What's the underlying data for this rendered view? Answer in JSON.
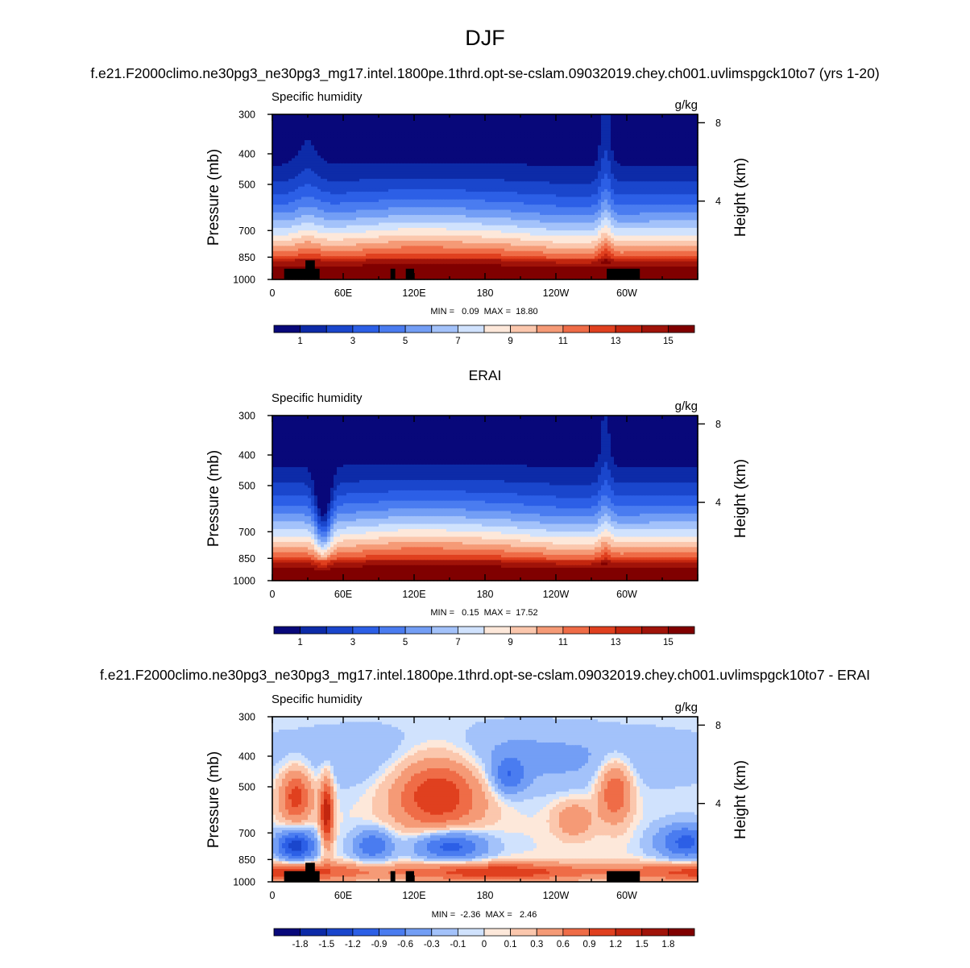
{
  "page_title": "DJF",
  "unit_label": "g/kg",
  "y_left_label": "Pressure (mb)",
  "y_right_label": "Height (km)",
  "pressure_ticks": [
    "300",
    "400",
    "500",
    "700",
    "850",
    "1000"
  ],
  "height_ticks": [
    "8",
    "4"
  ],
  "lon_ticks": [
    "0",
    "60E",
    "120E",
    "180",
    "120W",
    "60W"
  ],
  "colors": {
    "abs_levels": [
      "#08087a",
      "#0d2ba8",
      "#1a46cc",
      "#2c5fe6",
      "#4a7cf0",
      "#739ef5",
      "#a3c2fa",
      "#d0e2fd",
      "#fde8da",
      "#fbc7ad",
      "#f59a76",
      "#ef6c47",
      "#e0401f",
      "#c3260f",
      "#a01309",
      "#800000"
    ],
    "diff_levels": [
      "#08087a",
      "#0d2ba8",
      "#1a46cc",
      "#2c5fe6",
      "#4a7cf0",
      "#739ef5",
      "#a3c2fa",
      "#d0e2fd",
      "#fde8da",
      "#fbc7ad",
      "#f59a76",
      "#ef6c47",
      "#e0401f",
      "#c3260f",
      "#a01309",
      "#800000"
    ],
    "topography": "#000000"
  },
  "chart_data": [
    {
      "type": "heatmap",
      "title": "f.e21.F2000climo.ne30pg3_ne30pg3_mg17.intel.1800pe.1thrd.opt-se-cslam.09032019.chey.ch001.uvlimspgck10to7 (yrs 1-20)",
      "left_title": "Specific humidity",
      "right_title": "g/kg",
      "xlabel": "",
      "ylabel": "Pressure (mb)",
      "y2label": "Height (km)",
      "x_ticks": [
        "0",
        "60E",
        "120E",
        "180",
        "120W",
        "60W"
      ],
      "y_ticks": [
        300,
        400,
        500,
        700,
        850,
        1000
      ],
      "stats": "MIN =   0.09  MAX =  18.80",
      "colorbar_labels": [
        "1",
        "3",
        "5",
        "7",
        "9",
        "11",
        "13",
        "15"
      ],
      "ylim": [
        1000,
        300
      ],
      "xlim": [
        0,
        360
      ]
    },
    {
      "type": "heatmap",
      "title": "ERAI",
      "left_title": "Specific humidity",
      "right_title": "g/kg",
      "xlabel": "",
      "ylabel": "Pressure (mb)",
      "y2label": "Height (km)",
      "x_ticks": [
        "0",
        "60E",
        "120E",
        "180",
        "120W",
        "60W"
      ],
      "y_ticks": [
        300,
        400,
        500,
        700,
        850,
        1000
      ],
      "stats": "MIN =   0.15  MAX =  17.52",
      "colorbar_labels": [
        "1",
        "3",
        "5",
        "7",
        "9",
        "11",
        "13",
        "15"
      ],
      "ylim": [
        1000,
        300
      ],
      "xlim": [
        0,
        360
      ]
    },
    {
      "type": "heatmap",
      "title": "f.e21.F2000climo.ne30pg3_ne30pg3_mg17.intel.1800pe.1thrd.opt-se-cslam.09032019.chey.ch001.uvlimspgck10to7 - ERAI",
      "left_title": "Specific humidity",
      "right_title": "g/kg",
      "xlabel": "",
      "ylabel": "Pressure (mb)",
      "y2label": "Height (km)",
      "x_ticks": [
        "0",
        "60E",
        "120E",
        "180",
        "120W",
        "60W"
      ],
      "y_ticks": [
        300,
        400,
        500,
        700,
        850,
        1000
      ],
      "stats": "MIN =  -2.36  MAX =   2.46",
      "colorbar_labels": [
        "-1.8",
        "-1.5",
        "-1.2",
        "-0.9",
        "-0.6",
        "-0.3",
        "-0.1",
        "0",
        "0.1",
        "0.3",
        "0.6",
        "0.9",
        "1.2",
        "1.5",
        "1.8"
      ],
      "ylim": [
        1000,
        300
      ],
      "xlim": [
        0,
        360
      ]
    }
  ]
}
